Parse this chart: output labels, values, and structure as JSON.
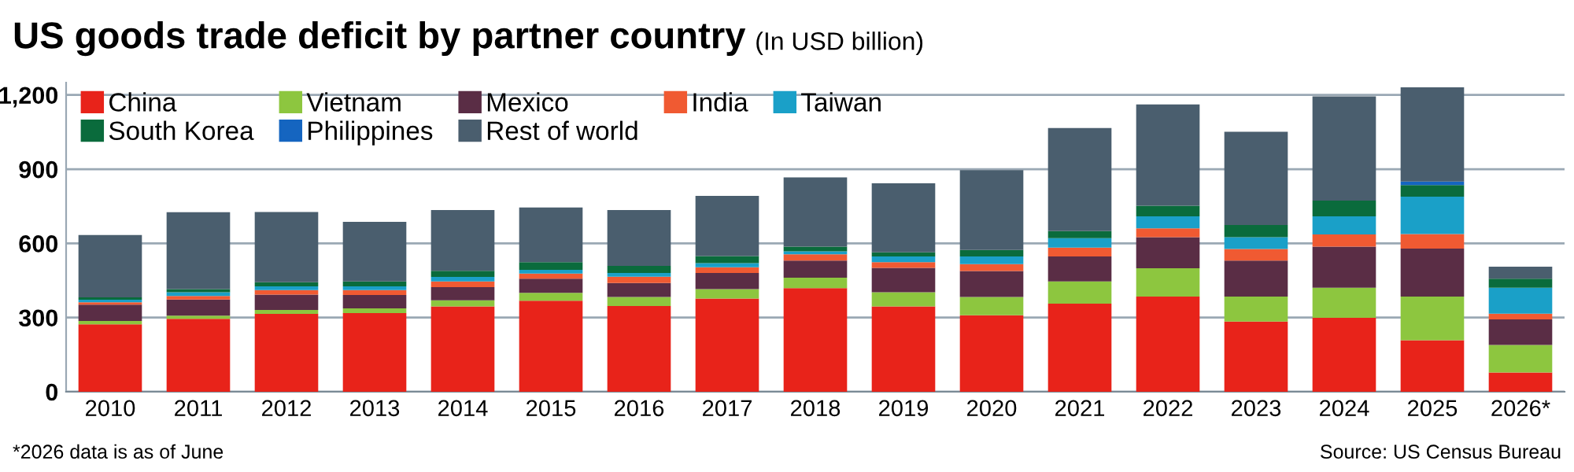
{
  "chart_data": {
    "type": "bar",
    "title": "US goods trade deficit by partner country",
    "subtitle": "(In USD billion)",
    "categories": [
      "2010",
      "2011",
      "2012",
      "2013",
      "2014",
      "2015",
      "2016",
      "2017",
      "2018",
      "2019",
      "2020",
      "2021",
      "2022",
      "2023",
      "2024",
      "2025",
      "2026*"
    ],
    "stacked": true,
    "series": [
      {
        "name": "China",
        "color": "#e8231a",
        "values": [
          273,
          295,
          315,
          318,
          345,
          368,
          347,
          377,
          419,
          345,
          309,
          356,
          385,
          284,
          299,
          208,
          78
        ]
      },
      {
        "name": "Vietnam",
        "color": "#8dc63f",
        "values": [
          13,
          13,
          16,
          19,
          25,
          32,
          36,
          38,
          42,
          57,
          74,
          90,
          114,
          101,
          122,
          177,
          111
        ]
      },
      {
        "name": "Mexico",
        "color": "#5a2d45",
        "values": [
          66,
          65,
          62,
          54,
          53,
          57,
          57,
          65,
          69,
          99,
          105,
          101,
          126,
          145,
          166,
          194,
          104
        ]
      },
      {
        "name": "India",
        "color": "#f05a32",
        "values": [
          10,
          14,
          18,
          20,
          23,
          21,
          25,
          23,
          26,
          23,
          28,
          36,
          36,
          47,
          49,
          59,
          23
        ]
      },
      {
        "name": "Taiwan",
        "color": "#1aa0c8",
        "values": [
          10,
          15,
          15,
          15,
          18,
          15,
          15,
          17,
          12,
          23,
          31,
          38,
          48,
          48,
          73,
          151,
          105
        ]
      },
      {
        "name": "South Korea",
        "color": "#0a6b3c",
        "values": [
          10,
          13,
          17,
          20,
          25,
          31,
          29,
          29,
          19,
          17,
          26,
          29,
          43,
          49,
          64,
          47,
          36
        ]
      },
      {
        "name": "Philippines",
        "color": "#1565c0",
        "values": [
          null,
          null,
          null,
          null,
          null,
          null,
          null,
          null,
          null,
          null,
          null,
          null,
          null,
          null,
          null,
          14,
          null
        ]
      },
      {
        "name": "Rest of world",
        "color": "#4a5e6e",
        "values": [
          252,
          311,
          284,
          241,
          246,
          221,
          226,
          243,
          280,
          279,
          323,
          416,
          410,
          377,
          421,
          381,
          49
        ]
      }
    ],
    "ylim": [
      0,
      1250
    ],
    "yticks": [
      0,
      300,
      600,
      900,
      {
        "value": 1200,
        "label": "1,200"
      }
    ],
    "grid": "y",
    "legend": "top left",
    "annotations": [
      "*2026 data is as of June",
      "Source: US Census Bureau"
    ]
  }
}
